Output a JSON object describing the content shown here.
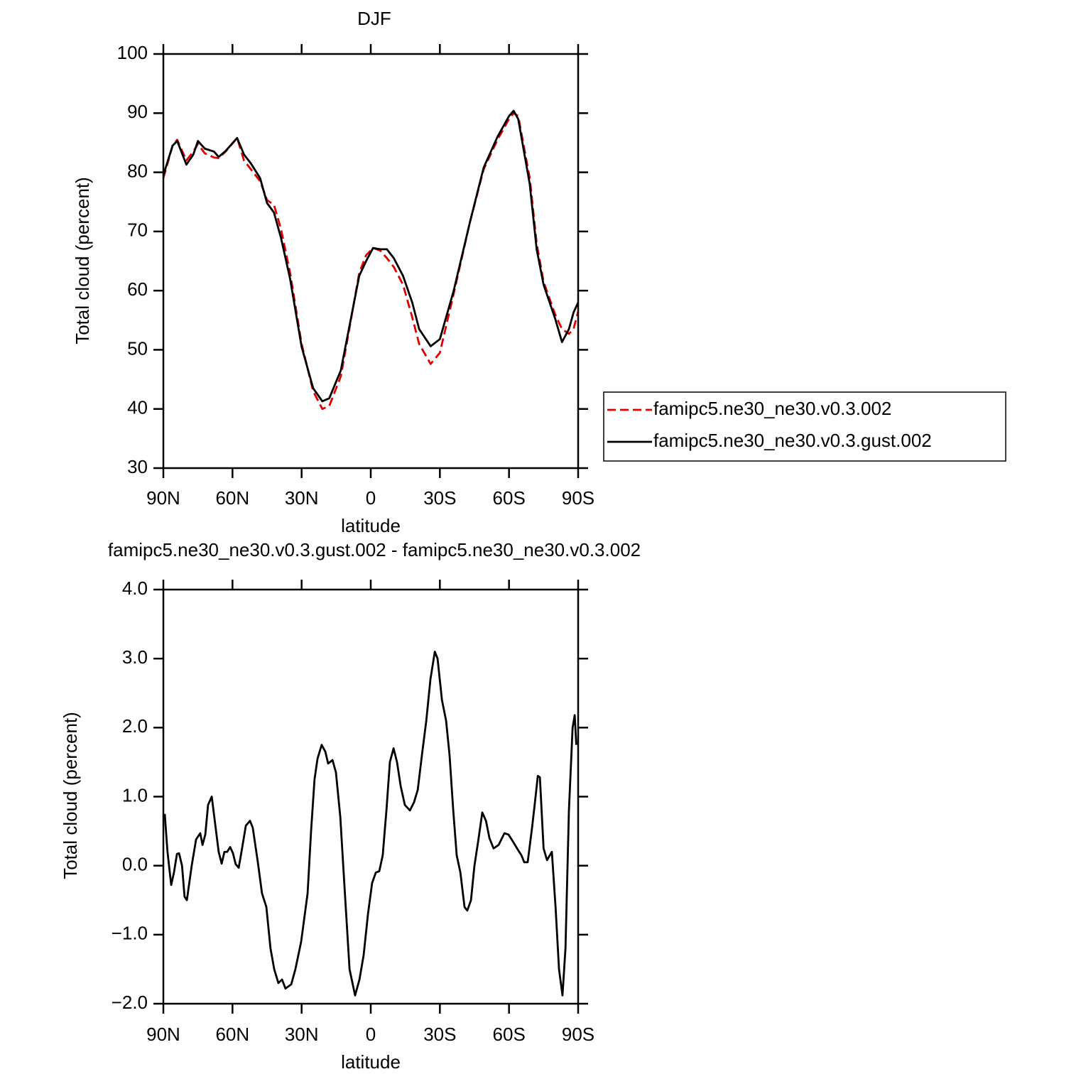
{
  "chart_data": [
    {
      "type": "line",
      "title": "DJF",
      "xlabel": "latitude",
      "ylabel": "Total cloud (percent)",
      "xlim": [
        90,
        -90
      ],
      "ylim": [
        30,
        100
      ],
      "xticks": [
        {
          "value": 90,
          "label": "90N"
        },
        {
          "value": 60,
          "label": "60N"
        },
        {
          "value": 30,
          "label": "30N"
        },
        0,
        {
          "value": -30,
          "label": "30S"
        },
        {
          "value": -60,
          "label": "60S"
        },
        {
          "value": -90,
          "label": "90S"
        }
      ],
      "yticks": [
        30,
        40,
        50,
        60,
        70,
        80,
        90,
        100
      ],
      "legend": "right",
      "x": [
        90,
        86,
        84,
        80,
        77,
        75,
        72,
        68,
        66,
        63,
        58,
        55,
        52,
        48,
        45,
        42,
        39,
        35,
        30,
        25,
        21,
        18,
        13,
        10,
        5,
        2,
        -1,
        -4,
        -7,
        -10,
        -14,
        -18,
        -21,
        -26,
        -30,
        -36,
        -43,
        -49,
        -55,
        -60,
        -62,
        -64,
        -69,
        -72,
        -75,
        -80,
        -83,
        -86,
        -88,
        -90
      ],
      "series": [
        {
          "name": "famipc5.ne30_ne30.v0.3.002",
          "color": "#e00000",
          "dash": true,
          "values": [
            79,
            84.5,
            85.5,
            82,
            83.5,
            84.8,
            83.2,
            82.5,
            82.4,
            83.5,
            85.8,
            82,
            80.5,
            78.5,
            75.3,
            74.5,
            70.5,
            63,
            51,
            43,
            40,
            40.5,
            45.5,
            52,
            63,
            66,
            67.2,
            66.8,
            65.5,
            64,
            61,
            55.5,
            51,
            47.6,
            49.5,
            59.5,
            71.5,
            80.5,
            85.5,
            89,
            90,
            89.5,
            79,
            68,
            61.5,
            56,
            53.5,
            52.7,
            53.5,
            56.5
          ]
        },
        {
          "name": "famipc5.ne30_ne30.v0.3.gust.002",
          "color": "#000000",
          "dash": false,
          "values": [
            79.5,
            84.5,
            85.3,
            81.3,
            83,
            85.3,
            84,
            83.5,
            82.6,
            83.6,
            85.8,
            83,
            81.5,
            79,
            74.8,
            73.2,
            69,
            62,
            50.5,
            43.5,
            41.3,
            41.8,
            46.5,
            52.5,
            62.5,
            65,
            67.2,
            67,
            67,
            65.5,
            62.5,
            58,
            53.5,
            50.6,
            51.8,
            60,
            71.5,
            80.8,
            86,
            89.5,
            90.4,
            89,
            78,
            67,
            61,
            55.3,
            51.3,
            53.5,
            56.3,
            58
          ]
        }
      ]
    },
    {
      "type": "line",
      "title": "famipc5.ne30_ne30.v0.3.gust.002 - famipc5.ne30_ne30.v0.3.002",
      "xlabel": "latitude",
      "ylabel": "Total cloud (percent)",
      "xlim": [
        90,
        -90
      ],
      "ylim": [
        -2,
        4
      ],
      "xticks": [
        {
          "value": 90,
          "label": "90N"
        },
        {
          "value": 60,
          "label": "60N"
        },
        {
          "value": 30,
          "label": "30N"
        },
        0,
        {
          "value": -30,
          "label": "30S"
        },
        {
          "value": -60,
          "label": "60S"
        },
        {
          "value": -90,
          "label": "90S"
        }
      ],
      "yticks": [
        {
          "value": -2,
          "label": "−2.0"
        },
        {
          "value": -1,
          "label": "−1.0"
        },
        {
          "value": 0,
          "label": "0.0"
        },
        {
          "value": 1,
          "label": "1.0"
        },
        {
          "value": 2,
          "label": "2.0"
        },
        {
          "value": 3,
          "label": "3.0"
        },
        {
          "value": 4,
          "label": "4.0"
        }
      ],
      "x": [
        89.4,
        88.2,
        86.6,
        85.4,
        84.1,
        83.2,
        81.9,
        80.8,
        79.8,
        77.7,
        75.8,
        74,
        73,
        71.8,
        70.6,
        69,
        67.5,
        66,
        64.7,
        63.5,
        62.3,
        61,
        59.8,
        58.6,
        57.3,
        56.1,
        54.2,
        52.4,
        51.2,
        49,
        47.2,
        45.3,
        43.5,
        41.9,
        40.1,
        38.5,
        37,
        34.5,
        32.7,
        30.2,
        27.4,
        25.9,
        24.4,
        23.1,
        21.3,
        19.7,
        18.5,
        16.6,
        15.1,
        13.2,
        11.4,
        9.2,
        6.8,
        4.9,
        3.1,
        1.2,
        -0.6,
        -2.2,
        -3.7,
        -5.2,
        -6.8,
        -8.3,
        -9.9,
        -11.4,
        -13,
        -14.8,
        -17,
        -18.8,
        -20.4,
        -22.2,
        -24.1,
        -25.9,
        -27.8,
        -29,
        -30.9,
        -32.7,
        -34.2,
        -35.8,
        -37.3,
        -38.9,
        -40.7,
        -41.9,
        -43.5,
        -45,
        -46.6,
        -48.4,
        -50,
        -51.5,
        -53.3,
        -55.5,
        -58,
        -59.8,
        -61.7,
        -63.5,
        -65.4,
        -66.6,
        -68.1,
        -70,
        -71.2,
        -72.5,
        -73.4,
        -75,
        -76.5,
        -77.7,
        -78.6,
        -80.2,
        -81.7,
        -83.2,
        -84.5,
        -86,
        -87.6,
        -88.5,
        -89.2
      ],
      "series": [
        {
          "color": "#000000",
          "dash": false,
          "values": [
            0.75,
            0.2,
            -0.28,
            -0.1,
            0.17,
            0.18,
            0,
            -0.45,
            -0.5,
            0,
            0.38,
            0.47,
            0.3,
            0.45,
            0.88,
            1.0,
            0.6,
            0.2,
            0.03,
            0.2,
            0.2,
            0.27,
            0.18,
            0.02,
            -0.03,
            0.2,
            0.58,
            0.65,
            0.55,
            0.05,
            -0.4,
            -0.6,
            -1.2,
            -1.5,
            -1.7,
            -1.65,
            -1.78,
            -1.72,
            -1.5,
            -1.1,
            -0.4,
            0.5,
            1.25,
            1.55,
            1.75,
            1.65,
            1.48,
            1.53,
            1.35,
            0.7,
            -0.3,
            -1.5,
            -1.88,
            -1.65,
            -1.3,
            -0.7,
            -0.25,
            -0.1,
            -0.08,
            0.15,
            0.8,
            1.5,
            1.7,
            1.5,
            1.15,
            0.88,
            0.8,
            0.92,
            1.1,
            1.6,
            2.1,
            2.7,
            3.1,
            3.0,
            2.4,
            2.1,
            1.6,
            0.8,
            0.15,
            -0.1,
            -0.6,
            -0.65,
            -0.5,
            0,
            0.35,
            0.77,
            0.65,
            0.4,
            0.25,
            0.3,
            0.47,
            0.45,
            0.35,
            0.25,
            0.15,
            0.05,
            0.05,
            0.55,
            0.9,
            1.3,
            1.28,
            0.25,
            0.08,
            0.15,
            0.2,
            -0.6,
            -1.5,
            -1.88,
            -1.2,
            0.8,
            2.0,
            2.18,
            1.75
          ]
        }
      ]
    }
  ]
}
